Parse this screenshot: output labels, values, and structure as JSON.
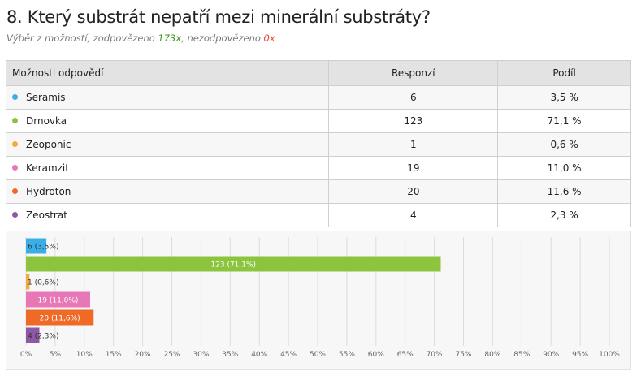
{
  "question": {
    "title": "8. Který substrát nepatří mezi minerální substráty?",
    "type_label": "Výběr z možností",
    "answered_label": ", zodpovězeno ",
    "answered_count": "173x",
    "unanswered_label": ", nezodpovězeno ",
    "unanswered_count": "0x"
  },
  "table": {
    "headers": {
      "option": "Možnosti odpovědí",
      "count": "Responzí",
      "share": "Podíl"
    },
    "rows": [
      {
        "label": "Seramis",
        "count": "6",
        "share": "3,5 %",
        "color": "#3aaee6"
      },
      {
        "label": "Drnovka",
        "count": "123",
        "share": "71,1 %",
        "color": "#8cc43e"
      },
      {
        "label": "Zeoponic",
        "count": "1",
        "share": "0,6 %",
        "color": "#f3a93b"
      },
      {
        "label": "Keramzit",
        "count": "19",
        "share": "11,0 %",
        "color": "#e877b8"
      },
      {
        "label": "Hydroton",
        "count": "20",
        "share": "11,6 %",
        "color": "#ee6a26"
      },
      {
        "label": "Zeostrat",
        "count": "4",
        "share": "2,3 %",
        "color": "#8e58a6"
      }
    ]
  },
  "chart_data": {
    "type": "bar",
    "orientation": "horizontal",
    "categories": [
      "Seramis",
      "Drnovka",
      "Zeoponic",
      "Keramzit",
      "Hydroton",
      "Zeostrat"
    ],
    "values": [
      3.5,
      71.1,
      0.6,
      11.0,
      11.6,
      2.3
    ],
    "data_labels": [
      "6 (3,5%)",
      "123 (71,1%)",
      "1 (0,6%)",
      "19 (11,0%)",
      "20 (11,6%)",
      "4 (2,3%)"
    ],
    "colors": [
      "#3aaee6",
      "#8cc43e",
      "#f3a93b",
      "#e877b8",
      "#ee6a26",
      "#8e58a6"
    ],
    "xlim": [
      0,
      100
    ],
    "x_ticks": [
      "0%",
      "5%",
      "10%",
      "15%",
      "20%",
      "25%",
      "30%",
      "35%",
      "40%",
      "45%",
      "50%",
      "55%",
      "60%",
      "65%",
      "70%",
      "75%",
      "80%",
      "85%",
      "90%",
      "95%",
      "100%"
    ],
    "grid": true,
    "legend": "none"
  }
}
